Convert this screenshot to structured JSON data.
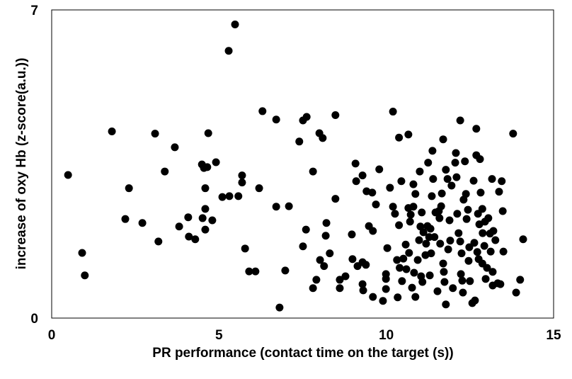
{
  "chart_data": {
    "type": "scatter",
    "x_label": "PR performance (contact time on the target (s))",
    "y_label": "increase of oxy Hb (z-score(a.u.))",
    "xlim": [
      0,
      15
    ],
    "xticks": [
      0,
      5,
      10,
      15
    ],
    "ylim": [
      0,
      7
    ],
    "yticks": [
      0,
      7
    ],
    "color": "#000000",
    "x": [
      0.49,
      0.91,
      0.99,
      1.8,
      2.2,
      2.31,
      2.71,
      3.09,
      3.19,
      3.38,
      3.68,
      3.81,
      4.08,
      4.1,
      4.29,
      4.49,
      4.55,
      4.59,
      4.59,
      4.59,
      4.51,
      4.68,
      4.65,
      4.8,
      4.91,
      5.1,
      5.29,
      5.31,
      5.48,
      5.58,
      5.69,
      5.69,
      5.78,
      5.9,
      6.09,
      6.2,
      6.3,
      6.71,
      6.71,
      6.81,
      6.98,
      7.09,
      7.4,
      7.51,
      7.51,
      7.6,
      7.62,
      7.81,
      7.81,
      7.91,
      8.0,
      8.02,
      8.1,
      8.14,
      8.19,
      8.21,
      8.31,
      8.48,
      8.48,
      8.61,
      8.61,
      8.78,
      8.97,
      8.99,
      9.08,
      9.1,
      9.14,
      9.29,
      9.29,
      9.29,
      9.31,
      9.39,
      9.41,
      9.48,
      9.58,
      9.6,
      9.6,
      9.69,
      9.79,
      9.9,
      9.99,
      9.99,
      9.99,
      10.03,
      10.11,
      10.2,
      10.2,
      10.26,
      10.32,
      10.34,
      10.38,
      10.38,
      10.4,
      10.45,
      10.47,
      10.51,
      10.58,
      10.6,
      10.66,
      10.66,
      10.68,
      10.71,
      10.73,
      10.77,
      10.81,
      10.81,
      10.83,
      10.87,
      10.87,
      10.94,
      10.98,
      11.0,
      11.02,
      11.04,
      11.06,
      11.08,
      11.11,
      11.17,
      11.19,
      11.23,
      11.25,
      11.28,
      11.3,
      11.32,
      11.34,
      11.36,
      11.38,
      11.4,
      11.44,
      11.47,
      11.53,
      11.57,
      11.59,
      11.61,
      11.64,
      11.66,
      11.7,
      11.7,
      11.72,
      11.74,
      11.78,
      11.78,
      11.83,
      11.85,
      11.89,
      11.91,
      11.95,
      11.99,
      12.06,
      12.08,
      12.1,
      12.12,
      12.16,
      12.21,
      12.21,
      12.23,
      12.25,
      12.27,
      12.29,
      12.31,
      12.35,
      12.38,
      12.4,
      12.44,
      12.46,
      12.48,
      12.5,
      12.57,
      12.61,
      12.63,
      12.65,
      12.69,
      12.69,
      12.72,
      12.74,
      12.76,
      12.78,
      12.8,
      12.82,
      12.87,
      12.87,
      12.88,
      12.93,
      12.95,
      12.97,
      13.01,
      13.05,
      13.1,
      13.12,
      13.16,
      13.18,
      13.18,
      13.2,
      13.26,
      13.33,
      13.37,
      13.41,
      13.45,
      13.48,
      13.5,
      13.79,
      13.88,
      14.0,
      14.09
    ],
    "values": [
      3.25,
      1.48,
      0.97,
      4.24,
      2.25,
      2.95,
      2.16,
      4.19,
      1.74,
      3.33,
      3.88,
      2.08,
      2.29,
      1.85,
      1.79,
      3.49,
      3.41,
      2.95,
      2.48,
      2.01,
      2.27,
      4.2,
      3.43,
      2.22,
      3.54,
      2.75,
      6.07,
      2.77,
      6.67,
      2.77,
      3.24,
      3.08,
      1.58,
      1.06,
      1.06,
      2.95,
      4.7,
      4.51,
      2.53,
      0.24,
      1.08,
      2.54,
      4.01,
      1.63,
      4.49,
      2.01,
      4.57,
      0.68,
      3.33,
      0.87,
      4.2,
      1.32,
      4.09,
      1.18,
      1.87,
      2.16,
      1.47,
      4.61,
      2.71,
      0.87,
      0.68,
      0.95,
      1.9,
      1.34,
      3.51,
      3.11,
      1.18,
      3.24,
      1.27,
      0.77,
      0.63,
      1.21,
      2.88,
      2.09,
      2.85,
      0.48,
      1.98,
      2.58,
      3.38,
      0.39,
      1.0,
      0.89,
      0.66,
      1.59,
      2.96,
      4.69,
      2.53,
      2.37,
      1.32,
      0.47,
      4.1,
      2.11,
      1.14,
      3.11,
      0.84,
      1.35,
      1.67,
      1.11,
      4.17,
      2.5,
      1.48,
      2.19,
      2.35,
      0.69,
      3.04,
      2.53,
      1.03,
      0.48,
      2.82,
      1.32,
      1.77,
      3.33,
      2.08,
      0.95,
      2.4,
      0.82,
      1.95,
      1.43,
      1.69,
      2.09,
      3.53,
      1.84,
      0.97,
      2.03,
      1.47,
      2.77,
      3.8,
      3.16,
      1.84,
      2.4,
      0.61,
      2.43,
      2.27,
      1.69,
      2.54,
      2.83,
      4.06,
      1.24,
      1.05,
      0.82,
      0.31,
      3.37,
      3.16,
      1.56,
      2.22,
      1.76,
      3.01,
      0.68,
      3.53,
      3.75,
      3.2,
      2.37,
      1.93,
      4.49,
      1.74,
      1.0,
      1.47,
      0.85,
      0.58,
      2.69,
      3.56,
      2.82,
      2.25,
      2.46,
      1.3,
      1.61,
      0.84,
      0.34,
      3.12,
      1.71,
      0.4,
      4.3,
      3.7,
      1.5,
      2.37,
      1.34,
      2.13,
      3.61,
      2.85,
      1.24,
      2.48,
      1.93,
      1.64,
      2.19,
      0.89,
      1.14,
      2.27,
      1.92,
      1.51,
      3.16,
      0.74,
      1.05,
      1.98,
      1.77,
      0.79,
      2.87,
      0.77,
      3.11,
      2.43,
      1.51,
      4.19,
      0.58,
      0.87,
      1.79
    ]
  }
}
